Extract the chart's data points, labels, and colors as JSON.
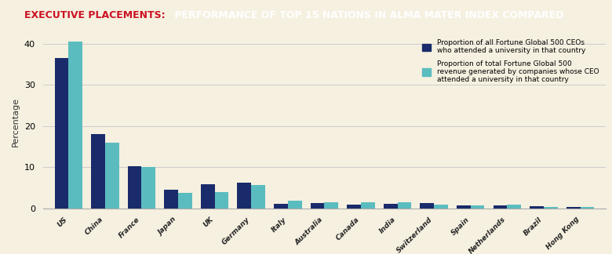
{
  "title_red": "EXECUTIVE PLACEMENTS:",
  "title_black": " PERFORMANCE OF TOP 15 NATIONS IN ALMA MATER INDEX COMPARED",
  "countries": [
    "US",
    "China",
    "France",
    "Japan",
    "UK",
    "Germany",
    "Italy",
    "Australia",
    "Canada",
    "India",
    "Switzerland",
    "Spain",
    "Netherlands",
    "Brazil",
    "Hong Kong"
  ],
  "ceo_proportion": [
    36.5,
    18.0,
    10.2,
    4.5,
    5.8,
    6.2,
    1.1,
    1.2,
    0.9,
    1.0,
    1.3,
    0.7,
    0.7,
    0.5,
    0.4
  ],
  "revenue_proportion": [
    40.5,
    16.0,
    10.0,
    3.8,
    4.0,
    5.6,
    1.8,
    1.5,
    1.5,
    1.5,
    0.8,
    0.7,
    0.9,
    0.3,
    0.3
  ],
  "color_ceo": "#1a2b6b",
  "color_revenue": "#5bbcbf",
  "background_color": "#f5f0e0",
  "title_color_red": "#cc1122",
  "title_color_white": "#ffffff",
  "ylabel": "Percentage",
  "ylim": [
    0,
    42
  ],
  "yticks": [
    0,
    10,
    20,
    30,
    40
  ],
  "legend_label_ceo": "Proportion of all Fortune Global 500 CEOs\nwho attended a university in that country",
  "legend_label_revenue": "Proportion of total Fortune Global 500\nrevenue generated by companies whose CEO\nattended a university in that country",
  "header_bg": "#111111",
  "bar_width": 0.38
}
